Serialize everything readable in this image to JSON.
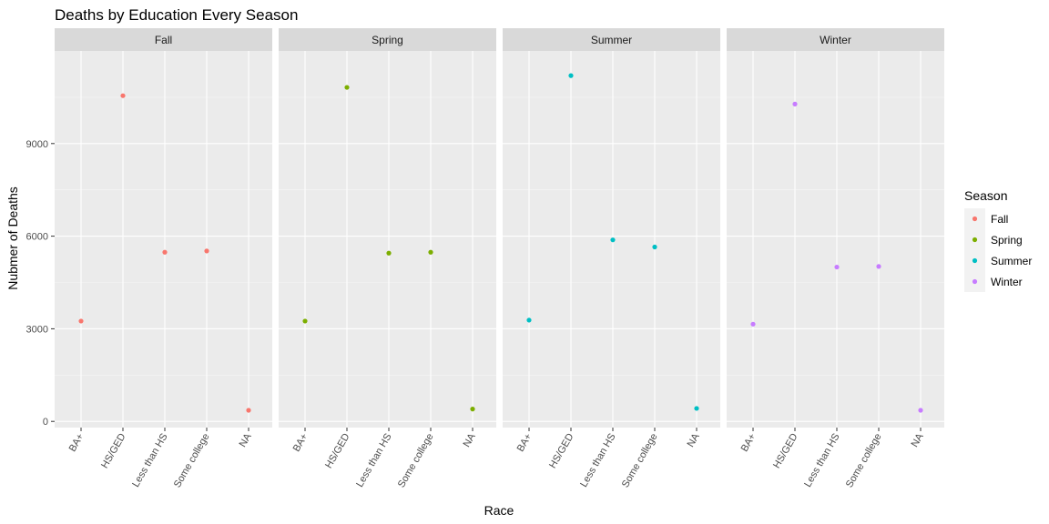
{
  "chart_data": {
    "type": "scatter",
    "title": "Deaths by Education Every Season",
    "xlabel": "Race",
    "ylabel": "Nubmer of Deaths",
    "ylim": [
      -200,
      12000
    ],
    "yticks": [
      0,
      3000,
      6000,
      9000
    ],
    "categories": [
      "BA+",
      "HS/GED",
      "Less than HS",
      "Some college",
      "NA"
    ],
    "facets": [
      "Fall",
      "Spring",
      "Summer",
      "Winter"
    ],
    "legend": {
      "title": "Season",
      "placement": "right"
    },
    "grid": true,
    "series": [
      {
        "name": "Fall",
        "color": "#F8766D",
        "values": [
          3250,
          10550,
          5480,
          5520,
          360
        ]
      },
      {
        "name": "Spring",
        "color": "#7CAE00",
        "values": [
          3250,
          10820,
          5450,
          5480,
          400
        ]
      },
      {
        "name": "Summer",
        "color": "#00BFC4",
        "values": [
          3280,
          11200,
          5880,
          5650,
          420
        ]
      },
      {
        "name": "Winter",
        "color": "#C77CFF",
        "values": [
          3150,
          10280,
          5000,
          5020,
          360
        ]
      }
    ]
  }
}
